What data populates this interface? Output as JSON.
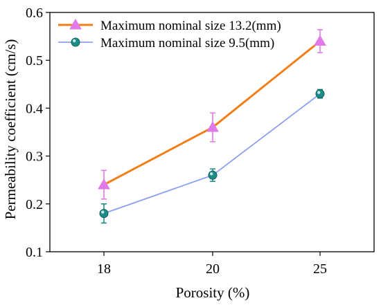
{
  "chart_data": {
    "type": "line",
    "xlabel": "Porosity (%)",
    "ylabel": "Permeability coefficient (cm/s)",
    "categories": [
      "18",
      "20",
      "25"
    ],
    "ylim": [
      0.1,
      0.6
    ],
    "yticks": [
      "0.1",
      "0.2",
      "0.3",
      "0.4",
      "0.5",
      "0.6"
    ],
    "grid": false,
    "legend_position": "top-left",
    "series": [
      {
        "name": "Maximum nominal size 13.2(mm)",
        "values": [
          0.24,
          0.36,
          0.54
        ],
        "errors": [
          0.03,
          0.03,
          0.024
        ],
        "line_color": "#f07f19",
        "marker_color": "#e07ae8",
        "marker": "triangle"
      },
      {
        "name": "Maximum nominal size 9.5(mm)",
        "values": [
          0.18,
          0.26,
          0.43
        ],
        "errors": [
          0.02,
          0.013,
          0.009
        ],
        "line_color": "#8f9ff0",
        "marker_color": "#1e8c86",
        "marker": "circle"
      }
    ]
  }
}
